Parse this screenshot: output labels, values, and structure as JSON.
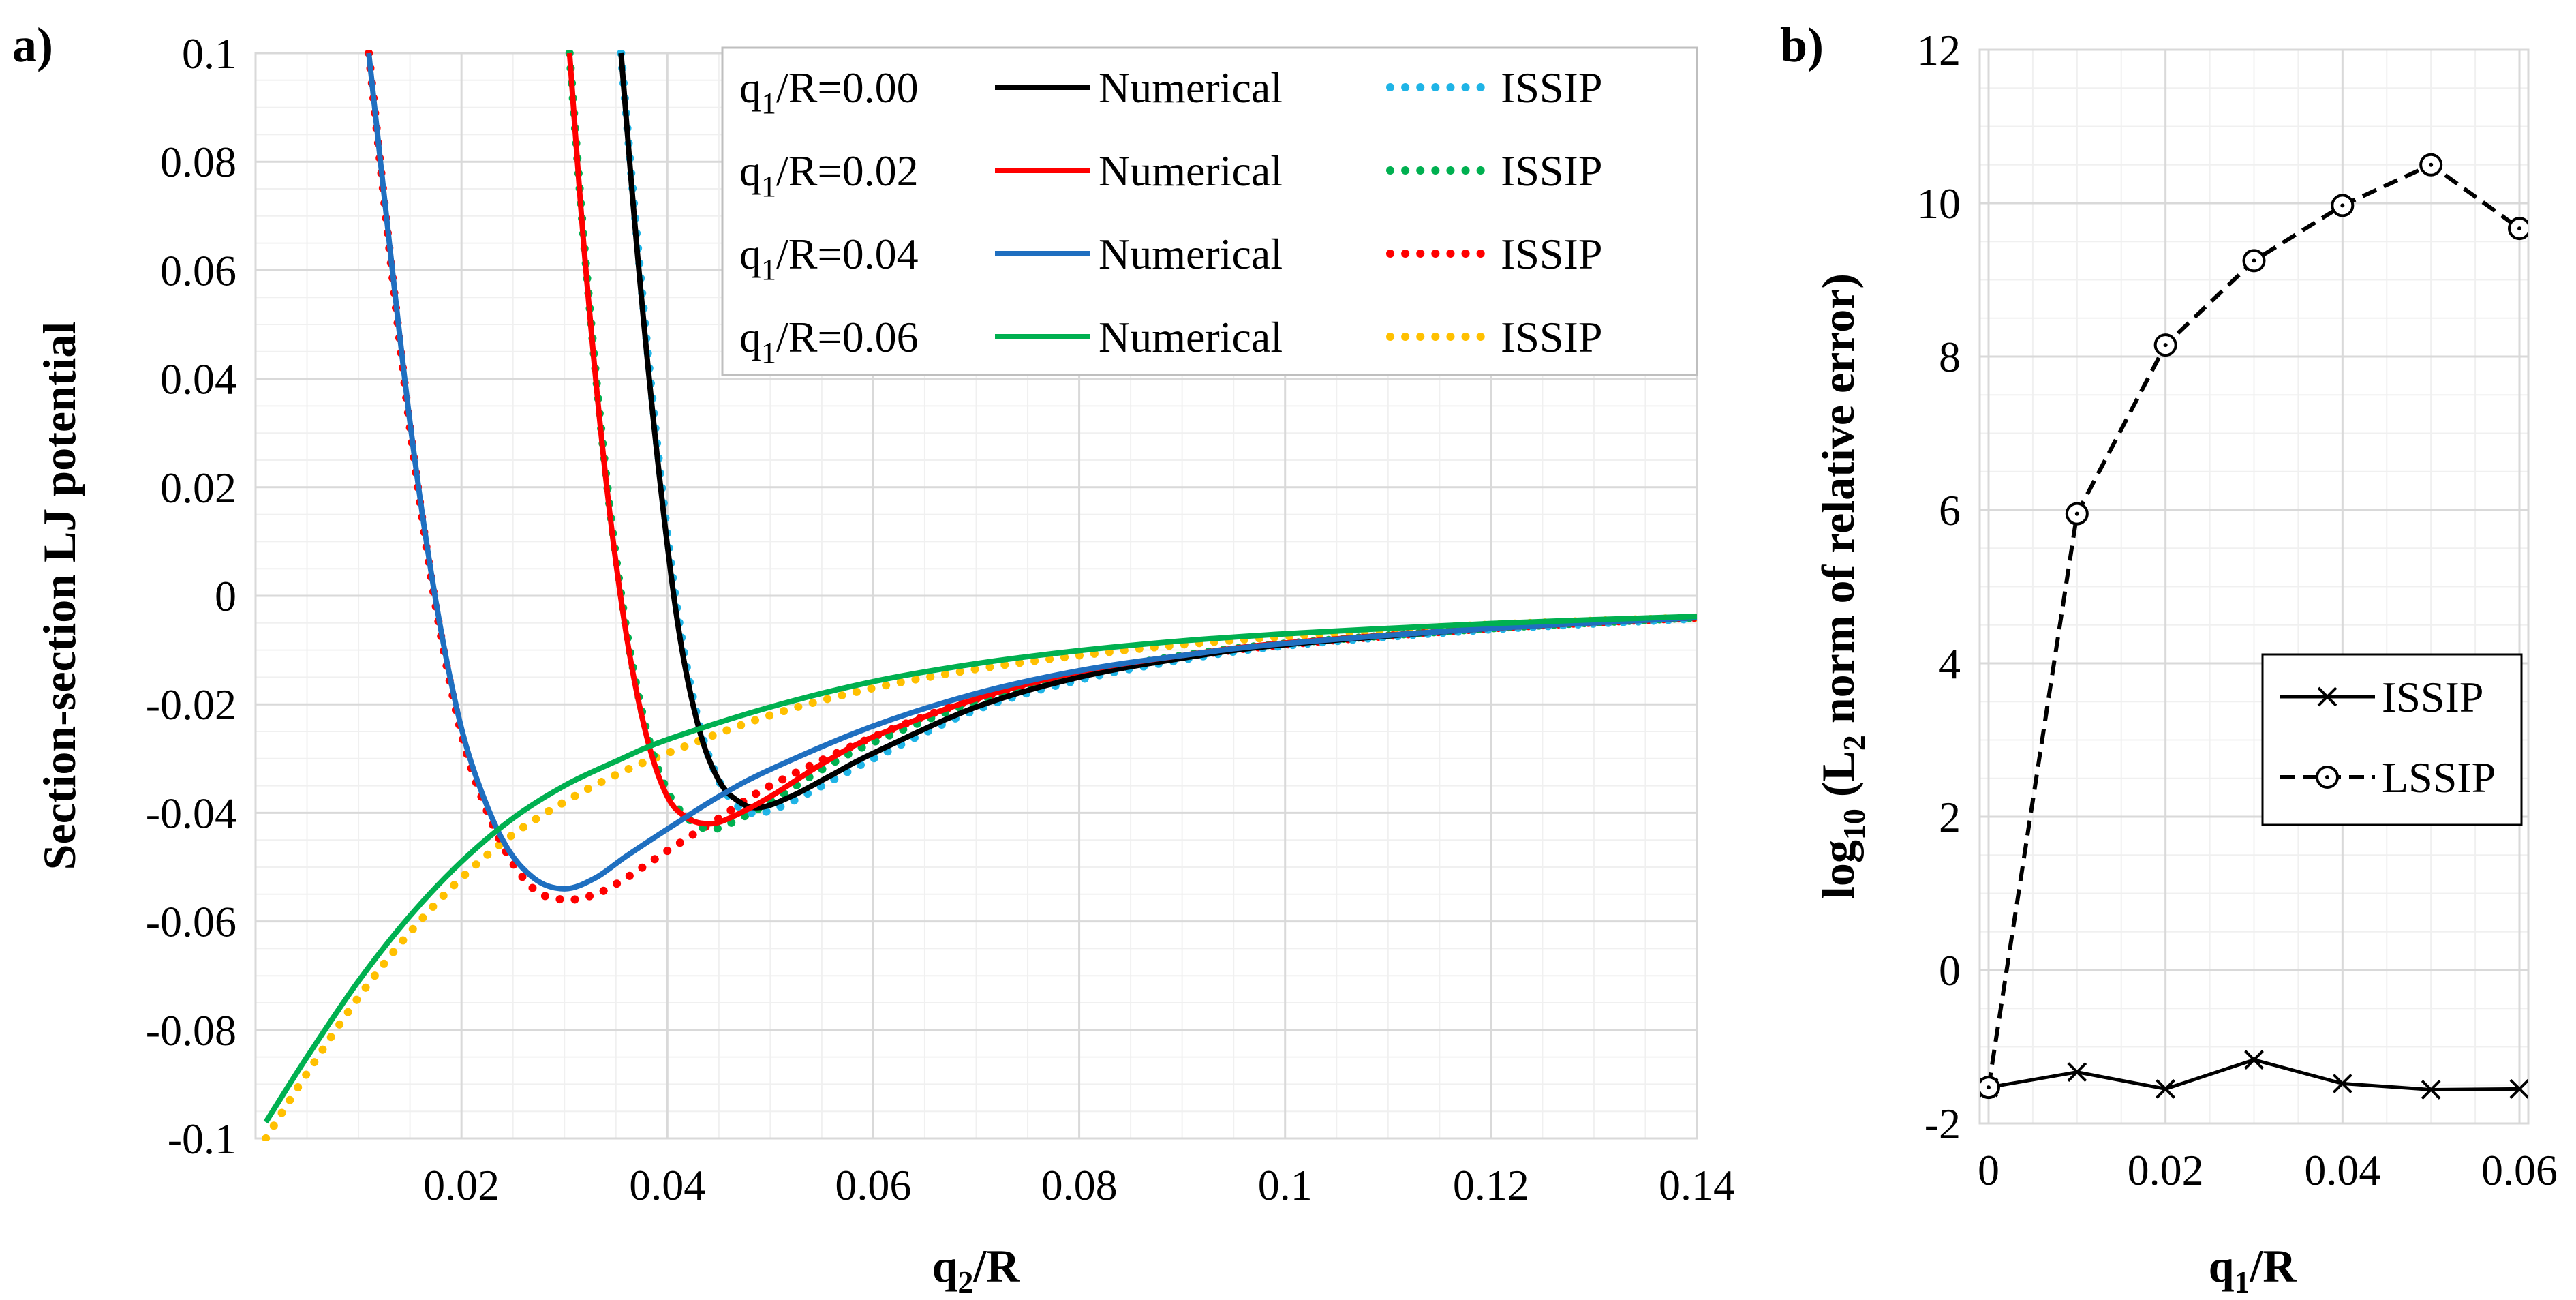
{
  "chart_data": [
    {
      "panel_tag": "a)",
      "type": "line",
      "title": "",
      "xlabel": {
        "base": "q",
        "sub": "2",
        "rest": "/R"
      },
      "ylabel": "Section-section LJ potential",
      "xlim": [
        0,
        0.14
      ],
      "ylim": [
        -0.1,
        0.1
      ],
      "xticks": [
        "0.02",
        "0.04",
        "0.06",
        "0.08",
        "0.1",
        "0.12",
        "0.14"
      ],
      "xtick_values": [
        0.02,
        0.04,
        0.06,
        0.08,
        0.1,
        0.12,
        0.14
      ],
      "yticks": [
        "-0.1",
        "-0.08",
        "-0.06",
        "-0.04",
        "-0.02",
        "0",
        "0.02",
        "0.04",
        "0.06",
        "0.08",
        "0.1"
      ],
      "ytick_values": [
        -0.1,
        -0.08,
        -0.06,
        -0.04,
        -0.02,
        0,
        0.02,
        0.04,
        0.06,
        0.08,
        0.1
      ],
      "grid": true,
      "legend_position": "top-right",
      "legend": [
        {
          "group": {
            "base": "q",
            "sub": "1",
            "rest": "/R=0.00"
          },
          "numerical": "Numerical",
          "approx": "ISSIP",
          "numerical_color": "#000000",
          "approx_color": "#1fb4e6"
        },
        {
          "group": {
            "base": "q",
            "sub": "1",
            "rest": "/R=0.02"
          },
          "numerical": "Numerical",
          "approx": "ISSIP",
          "numerical_color": "#ff0000",
          "approx_color": "#00b050"
        },
        {
          "group": {
            "base": "q",
            "sub": "1",
            "rest": "/R=0.04"
          },
          "numerical": "Numerical",
          "approx": "ISSIP",
          "numerical_color": "#1f6fc0",
          "approx_color": "#ff0000"
        },
        {
          "group": {
            "base": "q",
            "sub": "1",
            "rest": "/R=0.06"
          },
          "numerical": "Numerical",
          "approx": "ISSIP",
          "numerical_color": "#00b050",
          "approx_color": "#ffc000"
        }
      ],
      "series": [
        {
          "name": "q1/R=0.06 ISSIP",
          "style": "dotted",
          "color": "#ffc000",
          "x": [
            0.001,
            0.005,
            0.01,
            0.015,
            0.02,
            0.025,
            0.03,
            0.035,
            0.04,
            0.05,
            0.06,
            0.07,
            0.08,
            0.09,
            0.1,
            0.11,
            0.12,
            0.13,
            0.14
          ],
          "y": [
            -0.1,
            -0.088,
            -0.074,
            -0.062,
            -0.052,
            -0.044,
            -0.038,
            -0.033,
            -0.029,
            -0.022,
            -0.017,
            -0.0135,
            -0.011,
            -0.009,
            -0.0075,
            -0.0063,
            -0.0053,
            -0.0046,
            -0.004
          ]
        },
        {
          "name": "q1/R=0.04 ISSIP",
          "style": "dotted",
          "color": "#ff0000",
          "x": [
            0.011,
            0.013,
            0.015,
            0.017,
            0.019,
            0.021,
            0.024,
            0.027,
            0.03,
            0.033,
            0.036,
            0.04,
            0.045,
            0.05,
            0.06,
            0.07,
            0.08,
            0.09,
            0.1,
            0.12,
            0.14
          ],
          "y": [
            0.1,
            0.064,
            0.031,
            0.004,
            -0.017,
            -0.032,
            -0.046,
            -0.054,
            -0.056,
            -0.055,
            -0.052,
            -0.047,
            -0.041,
            -0.035,
            -0.026,
            -0.019,
            -0.0145,
            -0.0113,
            -0.009,
            -0.006,
            -0.004
          ]
        },
        {
          "name": "q1/R=0.02 ISSIP",
          "style": "dotted",
          "color": "#00b050",
          "x": [
            0.0305,
            0.032,
            0.034,
            0.036,
            0.038,
            0.04,
            0.042,
            0.044,
            0.046,
            0.05,
            0.055,
            0.06,
            0.07,
            0.08,
            0.09,
            0.1,
            0.12,
            0.14
          ],
          "y": [
            0.1,
            0.063,
            0.023,
            -0.006,
            -0.025,
            -0.036,
            -0.041,
            -0.043,
            -0.042,
            -0.038,
            -0.032,
            -0.027,
            -0.0195,
            -0.0145,
            -0.011,
            -0.0088,
            -0.006,
            -0.004
          ]
        },
        {
          "name": "q1/R=0.00 ISSIP",
          "style": "dotted",
          "color": "#1fb4e6",
          "x": [
            0.0355,
            0.037,
            0.039,
            0.041,
            0.043,
            0.045,
            0.047,
            0.049,
            0.052,
            0.056,
            0.06,
            0.07,
            0.08,
            0.09,
            0.1,
            0.12,
            0.14
          ],
          "y": [
            0.1,
            0.067,
            0.028,
            -0.003,
            -0.023,
            -0.034,
            -0.039,
            -0.04,
            -0.038,
            -0.034,
            -0.03,
            -0.021,
            -0.0155,
            -0.0118,
            -0.0092,
            -0.0062,
            -0.0042
          ]
        },
        {
          "name": "q1/R=0.00 Numerical",
          "style": "solid",
          "color": "#000000",
          "x": [
            0.0355,
            0.037,
            0.039,
            0.041,
            0.043,
            0.045,
            0.047,
            0.049,
            0.052,
            0.056,
            0.06,
            0.07,
            0.08,
            0.09,
            0.1,
            0.12,
            0.14
          ],
          "y": [
            0.1,
            0.065,
            0.026,
            -0.005,
            -0.024,
            -0.034,
            -0.038,
            -0.039,
            -0.037,
            -0.033,
            -0.029,
            -0.0205,
            -0.015,
            -0.0115,
            -0.009,
            -0.006,
            -0.004
          ]
        },
        {
          "name": "q1/R=0.02 Numerical",
          "style": "solid",
          "color": "#ff0000",
          "x": [
            0.0305,
            0.032,
            0.034,
            0.036,
            0.038,
            0.04,
            0.042,
            0.044,
            0.046,
            0.05,
            0.055,
            0.06,
            0.07,
            0.08,
            0.09,
            0.1,
            0.12,
            0.14
          ],
          "y": [
            0.1,
            0.062,
            0.022,
            -0.007,
            -0.026,
            -0.037,
            -0.041,
            -0.042,
            -0.041,
            -0.037,
            -0.031,
            -0.026,
            -0.019,
            -0.014,
            -0.011,
            -0.0087,
            -0.006,
            -0.004
          ]
        },
        {
          "name": "q1/R=0.04 Numerical",
          "style": "solid",
          "color": "#1f6fc0",
          "x": [
            0.011,
            0.013,
            0.015,
            0.017,
            0.019,
            0.021,
            0.024,
            0.027,
            0.03,
            0.033,
            0.036,
            0.04,
            0.045,
            0.05,
            0.06,
            0.07,
            0.08,
            0.09,
            0.1,
            0.12,
            0.14
          ],
          "y": [
            0.1,
            0.065,
            0.032,
            0.005,
            -0.016,
            -0.031,
            -0.045,
            -0.052,
            -0.054,
            -0.052,
            -0.048,
            -0.043,
            -0.037,
            -0.032,
            -0.024,
            -0.018,
            -0.0138,
            -0.011,
            -0.0088,
            -0.006,
            -0.004
          ]
        },
        {
          "name": "q1/R=0.06 Numerical",
          "style": "solid",
          "color": "#00b050",
          "x": [
            0.001,
            0.005,
            0.01,
            0.015,
            0.02,
            0.025,
            0.03,
            0.035,
            0.04,
            0.05,
            0.06,
            0.07,
            0.08,
            0.09,
            0.1,
            0.11,
            0.12,
            0.13,
            0.14
          ],
          "y": [
            -0.097,
            -0.085,
            -0.071,
            -0.059,
            -0.049,
            -0.041,
            -0.035,
            -0.0305,
            -0.0265,
            -0.0205,
            -0.0158,
            -0.0125,
            -0.0101,
            -0.0083,
            -0.007,
            -0.006,
            -0.0051,
            -0.0044,
            -0.0038
          ]
        }
      ]
    },
    {
      "panel_tag": "b)",
      "type": "line",
      "title": "",
      "xlabel": {
        "base": "q",
        "sub": "1",
        "rest": "/R"
      },
      "ylabel": {
        "base": "log",
        "sub": "10",
        "rest": " (L",
        "sub2": "2",
        "rest2": " norm of relative error)"
      },
      "xlim": [
        -0.001,
        0.061
      ],
      "ylim": [
        -2,
        12
      ],
      "xticks": [
        "0",
        "0.02",
        "0.04",
        "0.06"
      ],
      "xtick_values": [
        0,
        0.02,
        0.04,
        0.06
      ],
      "yticks": [
        "-2",
        "0",
        "2",
        "4",
        "6",
        "8",
        "10",
        "12"
      ],
      "ytick_values": [
        -2,
        0,
        2,
        4,
        6,
        8,
        10,
        12
      ],
      "grid": true,
      "legend_position": "center-right",
      "legend": [
        {
          "label": "ISSIP",
          "marker": "x",
          "style": "solid"
        },
        {
          "label": "LSSIP",
          "marker": "circle",
          "style": "dashed"
        }
      ],
      "series": [
        {
          "name": "ISSIP",
          "style": "solid",
          "marker": "x",
          "color": "#000000",
          "x": [
            0,
            0.01,
            0.02,
            0.03,
            0.04,
            0.05,
            0.06
          ],
          "y": [
            -1.53,
            -1.33,
            -1.55,
            -1.17,
            -1.48,
            -1.56,
            -1.55
          ]
        },
        {
          "name": "LSSIP",
          "style": "dashed",
          "marker": "circle",
          "color": "#000000",
          "x": [
            0,
            0.01,
            0.02,
            0.03,
            0.04,
            0.05,
            0.06
          ],
          "y": [
            -1.53,
            5.95,
            8.15,
            9.25,
            9.97,
            10.5,
            9.67
          ]
        }
      ]
    }
  ]
}
